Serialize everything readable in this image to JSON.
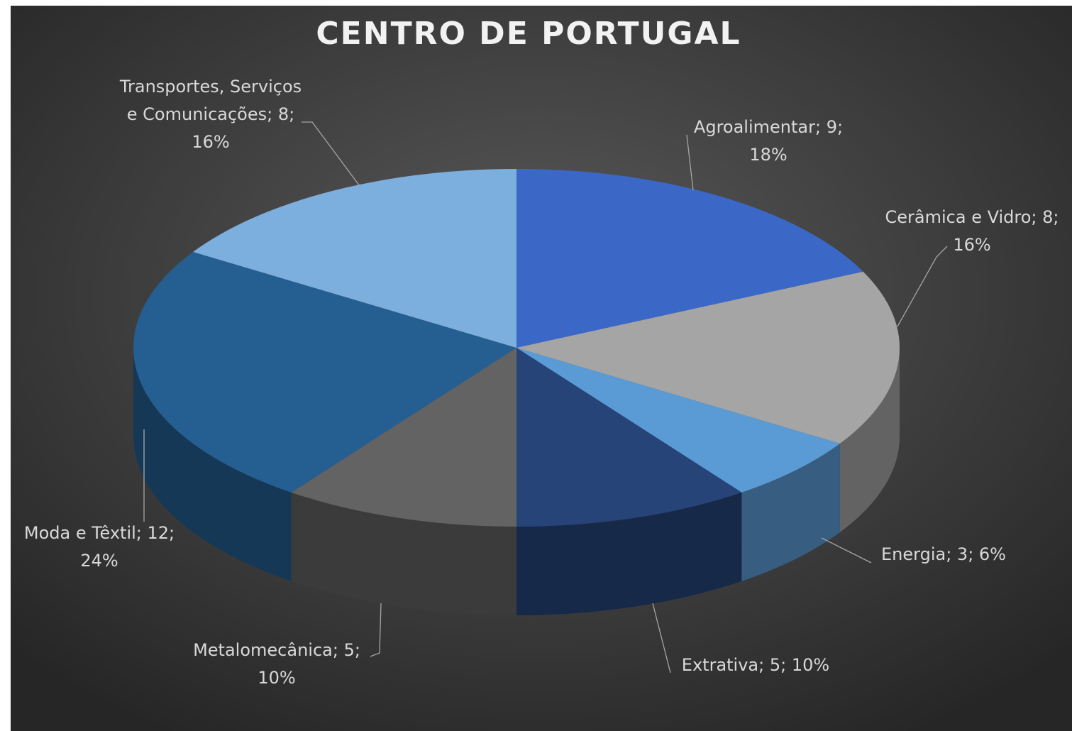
{
  "chart_data": {
    "type": "pie3d",
    "title": "CENTRO DE PORTUGAL",
    "values": [
      9,
      8,
      3,
      5,
      5,
      12,
      8
    ],
    "value_labels": [
      [
        "Agroalimentar; 9;",
        "18%"
      ],
      [
        "Cerâmica e Vidro; 8;",
        "16%"
      ],
      [
        "Energia; 3; 6%"
      ],
      [
        "Extrativa; 5; 10%"
      ],
      [
        "Metalomecânica; 5;",
        "10%"
      ],
      [
        "Moda e Têxtil; 12;",
        "24%"
      ],
      [
        "Transportes, Serviços",
        "e Comunicações; 8;",
        "16%"
      ]
    ],
    "colors": [
      "#3b68c6",
      "#a5a5a5",
      "#5b9bd5",
      "#264478",
      "#636363",
      "#255e91",
      "#7cafdd"
    ]
  }
}
